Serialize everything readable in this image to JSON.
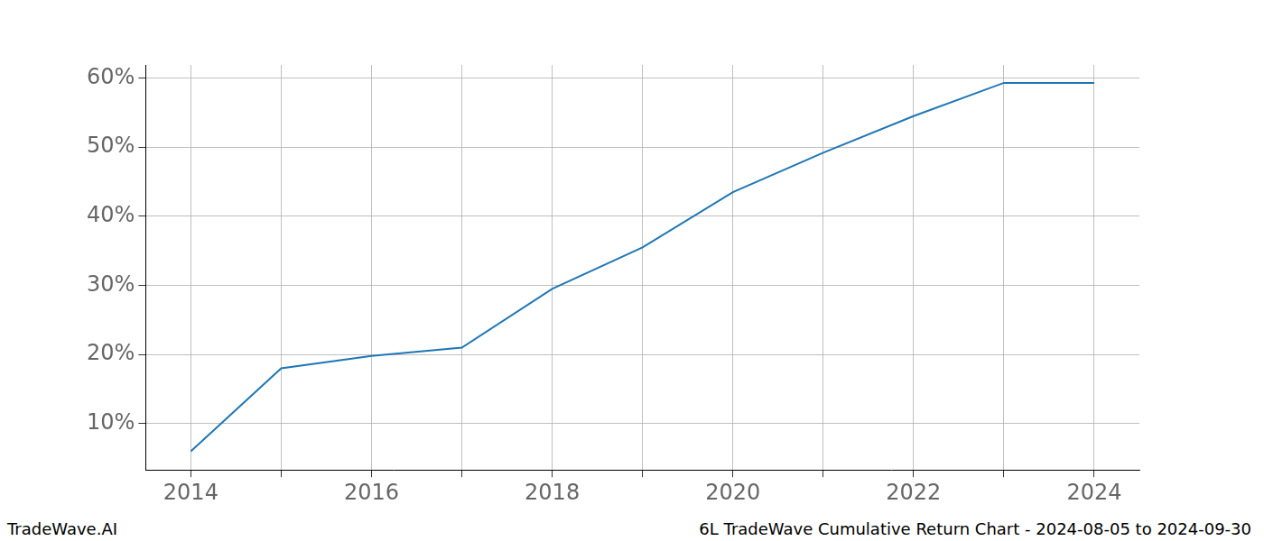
{
  "chart_data": {
    "type": "line",
    "annotations": [
      "TradeWave.AI",
      "6L TradeWave Cumulative Return Chart - 2024-08-05 to 2024-09-30"
    ],
    "categories": [
      2014,
      null,
      2016,
      null,
      2018,
      null,
      2020,
      null,
      2022,
      null,
      2024
    ],
    "values": [
      6.0,
      18.0,
      19.8,
      21.0,
      29.5,
      35.5,
      43.5,
      49.2,
      54.5,
      59.3,
      59.3
    ],
    "color": "#1f77b4",
    "line_style": "solid",
    "ylim": [
      3.3,
      61.9
    ],
    "yticks": [
      {
        "value": 10,
        "label": "10%"
      },
      {
        "value": 20,
        "label": "20%"
      },
      {
        "value": 30,
        "label": "30%"
      },
      {
        "value": 40,
        "label": "40%"
      },
      {
        "value": 50,
        "label": "50%"
      },
      {
        "value": 60,
        "label": "60%"
      }
    ],
    "grid": true
  }
}
